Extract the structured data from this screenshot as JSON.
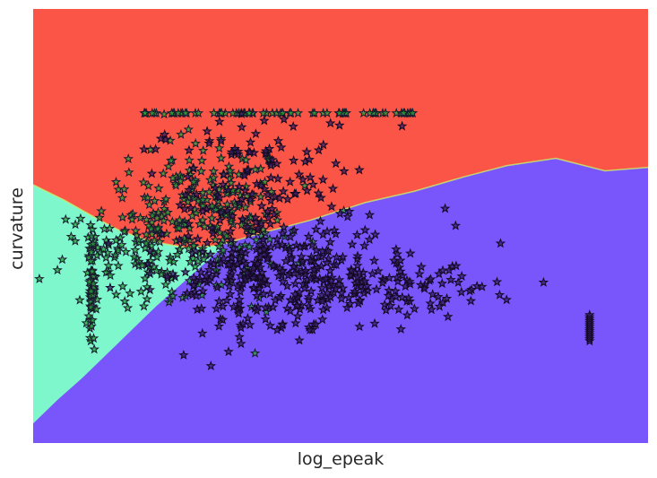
{
  "chart_data": {
    "type": "scatter",
    "title": "",
    "xlabel": "log_epeak",
    "ylabel": "curvature",
    "xlim": [
      0,
      100
    ],
    "ylim": [
      0,
      100
    ],
    "grid": false,
    "ticks": false,
    "background_regions": [
      {
        "class": "red",
        "color": "#fa5546"
      },
      {
        "class": "cyan",
        "color": "#7ef7cd"
      },
      {
        "class": "purple",
        "color": "#7856fc"
      }
    ],
    "boundaries": {
      "red_lower_edge": [
        [
          0,
          59.5
        ],
        [
          5,
          56
        ],
        [
          10,
          52
        ],
        [
          14,
          49
        ],
        [
          19,
          46.5
        ],
        [
          25,
          45
        ],
        [
          30,
          45.5
        ],
        [
          38,
          48.7
        ],
        [
          45,
          51.3
        ],
        [
          54,
          55.4
        ],
        [
          62,
          58
        ],
        [
          70,
          61.3
        ],
        [
          77,
          63.9
        ],
        [
          85,
          65.6
        ],
        [
          93,
          62.7
        ],
        [
          100,
          63.5
        ]
      ],
      "cyan_purple_edge": [
        [
          0,
          4.5
        ],
        [
          4,
          10
        ],
        [
          8,
          15
        ],
        [
          12,
          20.5
        ],
        [
          16,
          26
        ],
        [
          20,
          31.5
        ],
        [
          24,
          36.5
        ],
        [
          28,
          41.5
        ],
        [
          31,
          45.4
        ]
      ]
    },
    "marker": "star",
    "series": [
      {
        "marker_color": "#2aa43a",
        "edge_color": "#1a1a2e",
        "clusters": [
          {
            "cx": 28,
            "cy": 52,
            "sx": 7,
            "sy": 9,
            "n": 260
          },
          {
            "cx": 16,
            "cy": 44,
            "sx": 5,
            "sy": 6,
            "n": 90
          },
          {
            "cx": 9.5,
            "cy": 35,
            "sx": 0.3,
            "sy": 7,
            "n": 60
          }
        ],
        "rows": [
          {
            "x_from": 18,
            "x_to": 63,
            "y": 76,
            "n": 70
          }
        ]
      },
      {
        "marker_color": "#3a1c6a",
        "edge_color": "#120a20",
        "clusters": [
          {
            "cx": 40,
            "cy": 38,
            "sx": 10,
            "sy": 6,
            "n": 330
          },
          {
            "cx": 36,
            "cy": 60,
            "sx": 8,
            "sy": 9,
            "n": 120
          },
          {
            "cx": 60,
            "cy": 36,
            "sx": 7,
            "sy": 4,
            "n": 80
          }
        ],
        "points": [
          [
            76,
            46
          ],
          [
            83,
            37
          ],
          [
            67,
            54
          ],
          [
            73,
            36
          ],
          [
            71,
            35
          ],
          [
            77,
            33
          ],
          [
            60,
            73
          ]
        ],
        "stacks": [
          {
            "x": 90.5,
            "y_from": 23.5,
            "y_to": 29.5,
            "n": 14
          }
        ]
      }
    ]
  }
}
